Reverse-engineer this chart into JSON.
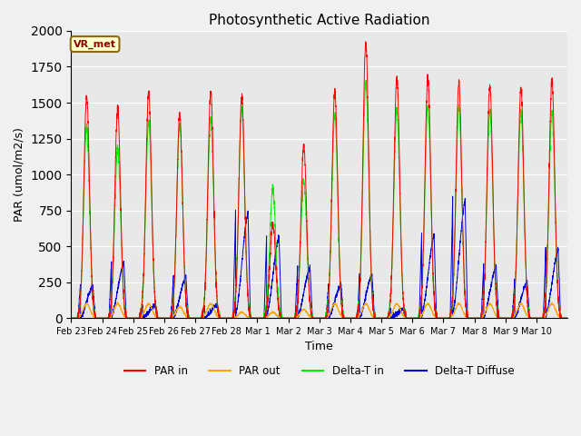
{
  "title": "Photosynthetic Active Radiation",
  "ylabel": "PAR (umol/m2/s)",
  "xlabel": "Time",
  "annotation": "VR_met",
  "ylim": [
    0,
    2000
  ],
  "background_color": "#e8e8e8",
  "fig_bg_color": "#f0f0f0",
  "colors": {
    "par_in": "#ff0000",
    "par_out": "#ffa500",
    "delta_t_in": "#00ee00",
    "delta_t_diffuse": "#0000dd"
  },
  "legend": [
    "PAR in",
    "PAR out",
    "Delta-T in",
    "Delta-T Diffuse"
  ],
  "xtick_labels": [
    "Feb 23",
    "Feb 24",
    "Feb 25",
    "Feb 26",
    "Feb 27",
    "Feb 28",
    "Mar 1",
    "Mar 2",
    "Mar 3",
    "Mar 4",
    "Mar 5",
    "Mar 6",
    "Mar 7",
    "Mar 8",
    "Mar 9",
    "Mar 10"
  ],
  "n_days": 16,
  "pts_per_day": 288,
  "day_peaks_par_in": [
    1550,
    1460,
    1570,
    1420,
    1580,
    1540,
    660,
    1200,
    1580,
    1920,
    1680,
    1680,
    1640,
    1620,
    1600,
    1650
  ],
  "day_peaks_par_out": [
    100,
    100,
    100,
    80,
    100,
    40,
    40,
    60,
    100,
    100,
    100,
    100,
    100,
    100,
    100,
    100
  ],
  "day_peaks_delta_t_in": [
    1330,
    1180,
    1360,
    1340,
    1390,
    1450,
    900,
    960,
    1410,
    1640,
    1450,
    1480,
    1470,
    1440,
    1430,
    1430
  ],
  "day_peaks_delta_t_diffuse": [
    230,
    395,
    90,
    295,
    90,
    750,
    580,
    360,
    240,
    310,
    65,
    590,
    840,
    370,
    260,
    490
  ]
}
